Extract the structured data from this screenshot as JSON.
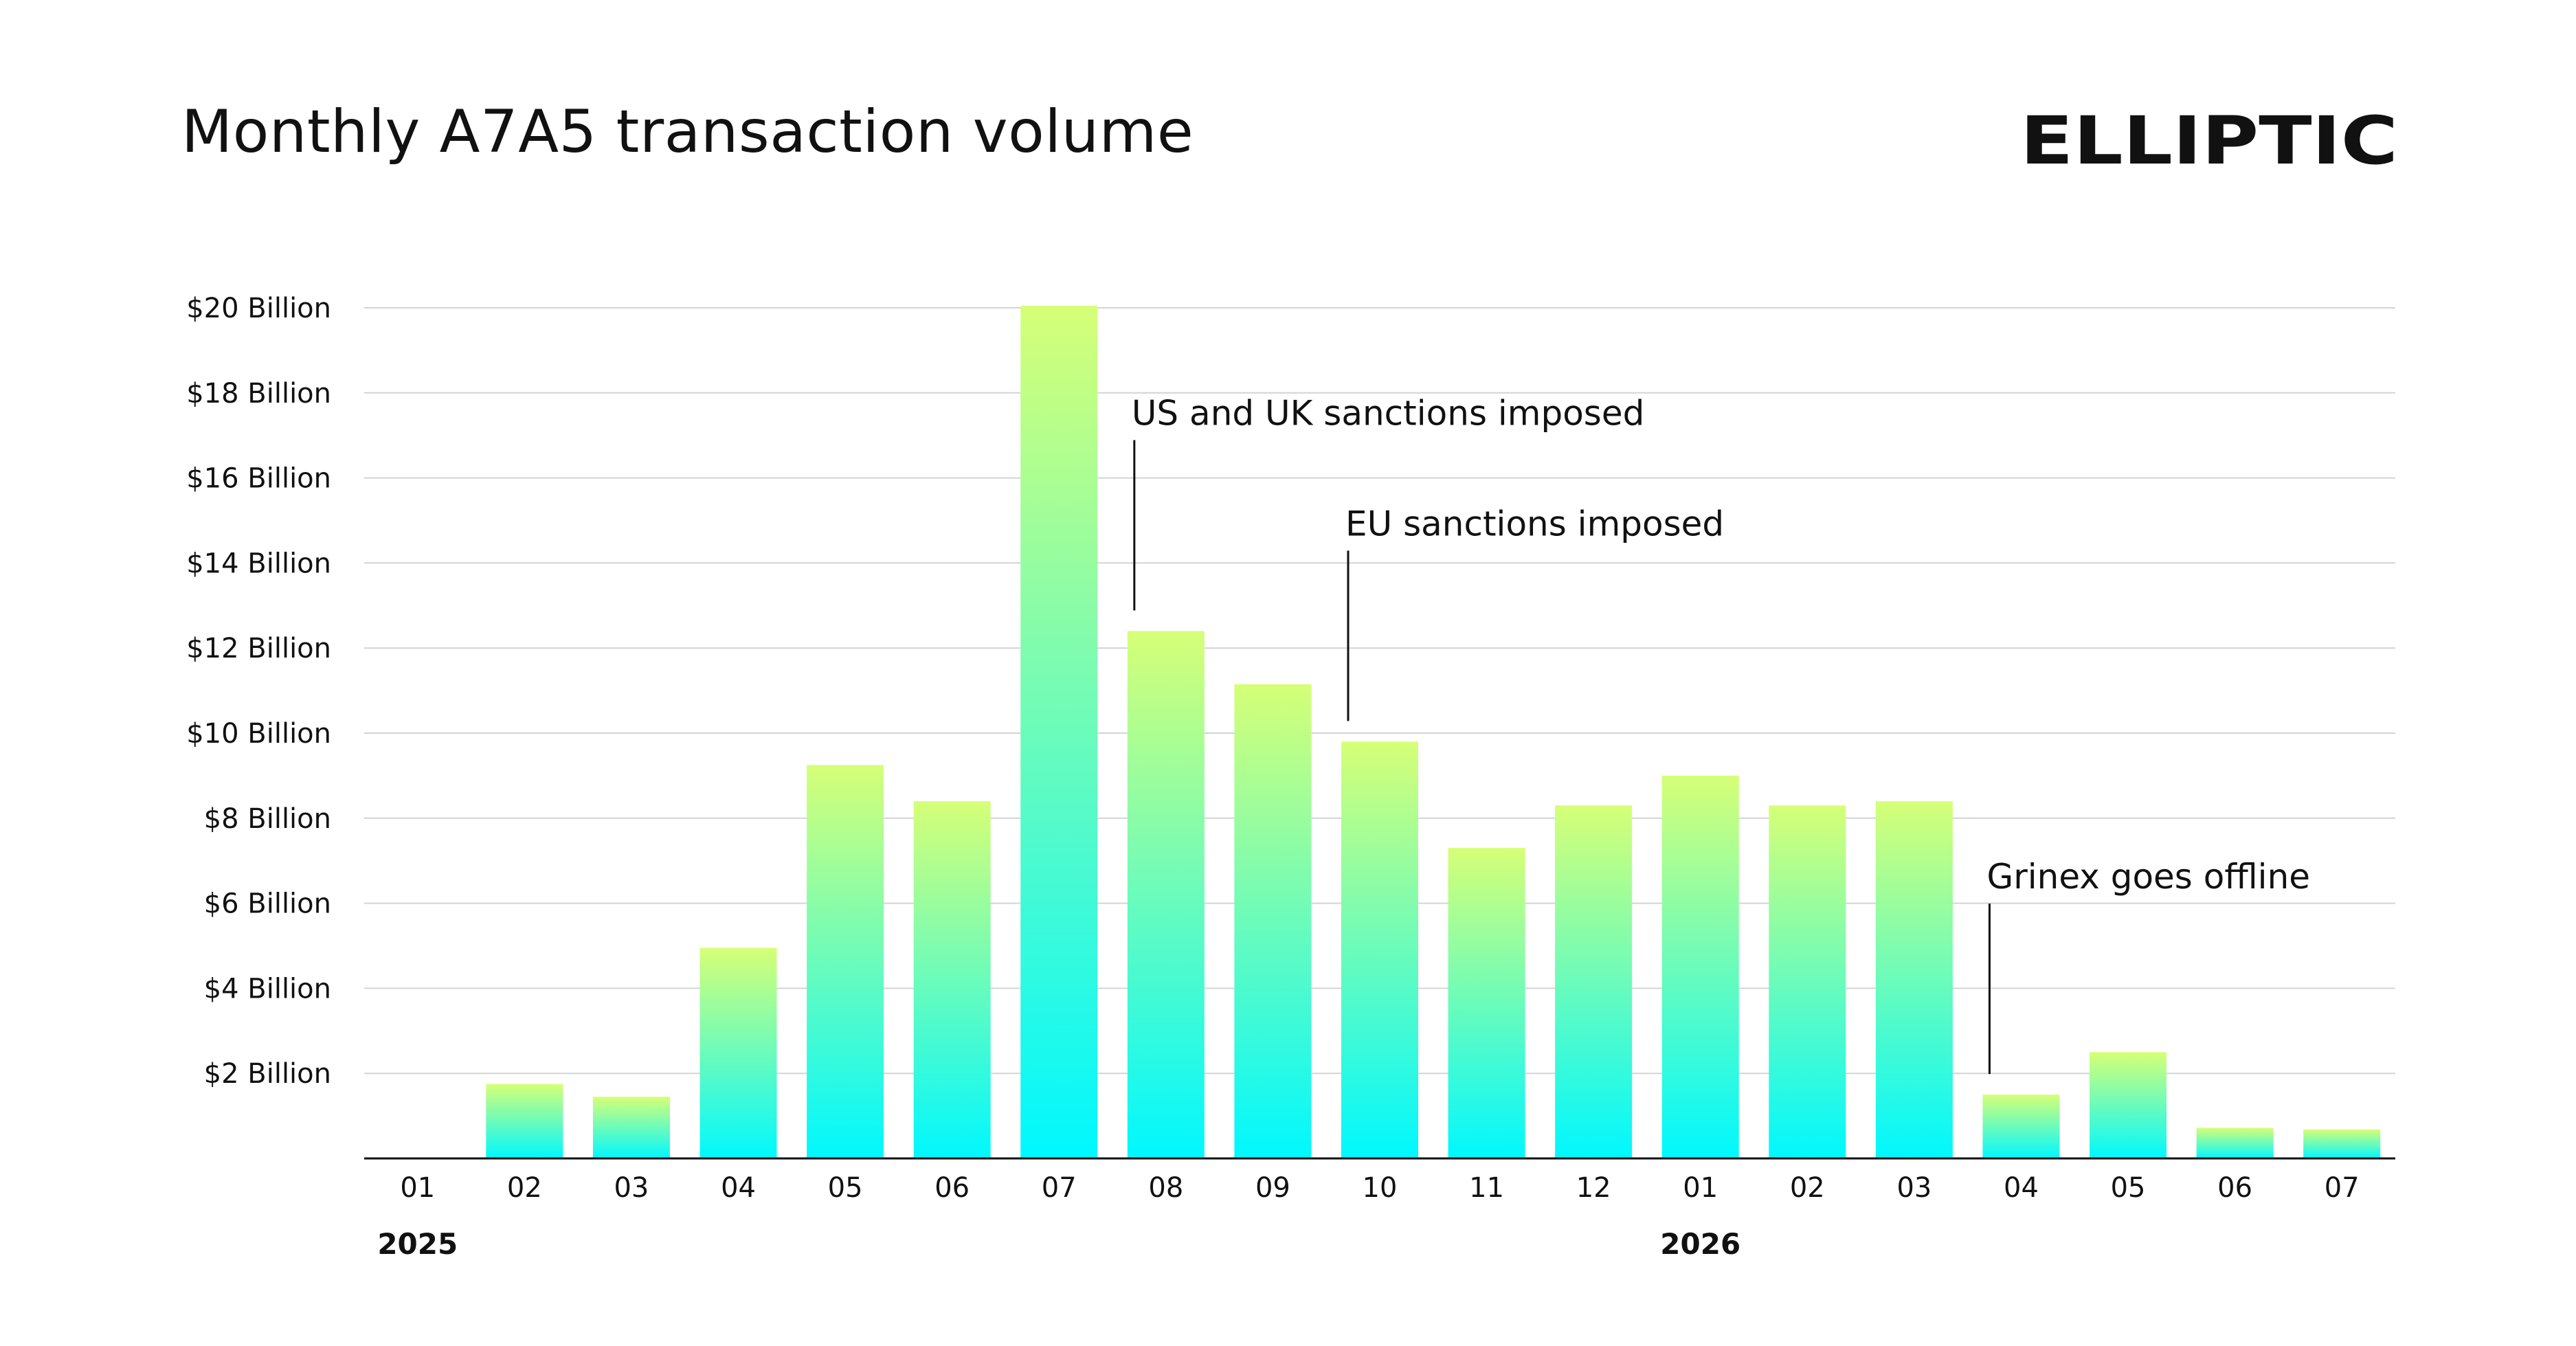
{
  "logo_text": "ELLIPTIC",
  "chart_data": {
    "type": "bar",
    "title": "Monthly A7A5 transaction volume",
    "xlabel": "",
    "ylabel": "",
    "categories": [
      "01",
      "02",
      "03",
      "04",
      "05",
      "06",
      "07",
      "08",
      "09",
      "10",
      "11",
      "12",
      "01",
      "02",
      "03",
      "04",
      "05",
      "06",
      "07"
    ],
    "year_labels": [
      {
        "index": 0,
        "label": "2025"
      },
      {
        "index": 12,
        "label": "2026"
      }
    ],
    "values": [
      0,
      1.75,
      1.45,
      4.95,
      9.25,
      8.4,
      20.05,
      12.4,
      11.15,
      9.8,
      7.3,
      8.3,
      9.0,
      8.3,
      8.4,
      1.5,
      2.5,
      0.72,
      0.68
    ],
    "value_unit": "Billion USD",
    "ylim": [
      0,
      20
    ],
    "yticks": [
      {
        "value": 2,
        "label": "$2 Billion"
      },
      {
        "value": 4,
        "label": "$4 Billion"
      },
      {
        "value": 6,
        "label": "$6 Billion"
      },
      {
        "value": 8,
        "label": "$8 Billion"
      },
      {
        "value": 10,
        "label": "$10 Billion"
      },
      {
        "value": 12,
        "label": "$12 Billion"
      },
      {
        "value": 14,
        "label": "$14 Billion"
      },
      {
        "value": 16,
        "label": "$16 Billion"
      },
      {
        "value": 18,
        "label": "$18 Billion"
      },
      {
        "value": 20,
        "label": "$20 Billion"
      }
    ],
    "grid": true,
    "bar_gradient": {
      "top": "#d6ff77",
      "bottom": "#00f8ff"
    },
    "annotations": [
      {
        "index": 7,
        "label": "US and UK sanctions imposed"
      },
      {
        "index": 9,
        "label": "EU sanctions imposed"
      },
      {
        "index": 15,
        "label": "Grinex goes offline"
      }
    ]
  }
}
